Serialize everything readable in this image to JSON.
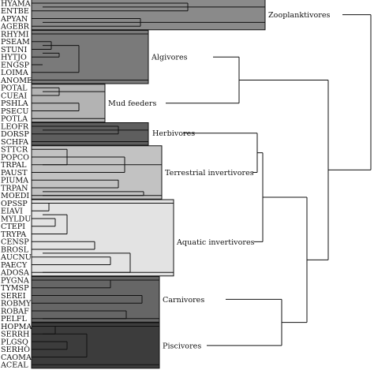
{
  "leaves": [
    "HYAMA",
    "ENTBE",
    "APYAN",
    "AGEBR",
    "RHYMI",
    "PSEAM",
    "STUNI",
    "HYTJO",
    "ENGSP",
    "LOIMA",
    "ANOME",
    "POTAL",
    "CUEAI",
    "PSHLA",
    "PSECU",
    "POTLA",
    "LEOFR",
    "DORSP",
    "SCHFA",
    "STTCR",
    "POPCO",
    "TRPAL",
    "PAUST",
    "PIUMA",
    "TRPAN",
    "MOEDI",
    "OPSSP",
    "EIAVI",
    "MYLDU",
    "CTEPI",
    "TRYPA",
    "CENSP",
    "BROSL",
    "AUCNU",
    "PAECY",
    "ADOSA",
    "PYGNA",
    "TYMSP",
    "SEREI",
    "ROBMY",
    "ROBAF",
    "PELFL",
    "HOPMA",
    "SERRH",
    "PLGSQ",
    "SERHO",
    "CAOMA",
    "ACEAL"
  ],
  "groups": [
    {
      "label": "Zooplanktivores",
      "color": "#8a8a8a"
    },
    {
      "label": "Algivores",
      "color": "#7a7a7a"
    },
    {
      "label": "Mud feeders",
      "color": "#b3b3b3"
    },
    {
      "label": "Herbivores",
      "color": "#5e5e5e"
    },
    {
      "label": "Terrestrial invertivores",
      "color": "#c2c2c2"
    },
    {
      "label": "Aquatic invertivores",
      "color": "#e3e3e3"
    },
    {
      "label": "Carnivores",
      "color": "#666666"
    },
    {
      "label": "Piscivores",
      "color": "#3c3c3c"
    }
  ]
}
